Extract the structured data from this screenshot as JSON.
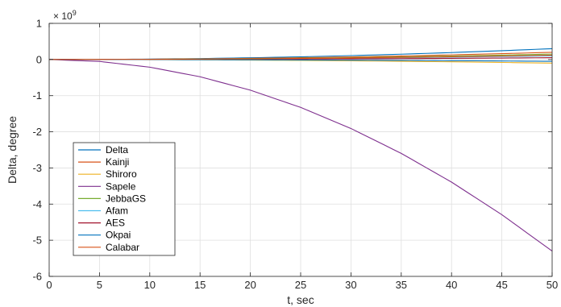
{
  "chart_data": {
    "type": "line",
    "title": "",
    "xlabel": "t, sec",
    "ylabel": "Delta, degree",
    "y_exponent_label": "× 10",
    "y_exponent_power": "9",
    "xlim": [
      0,
      50
    ],
    "ylim": [
      -6,
      1
    ],
    "y_scale_factor": 1000000000,
    "x_ticks": [
      "0",
      "5",
      "10",
      "15",
      "20",
      "25",
      "30",
      "35",
      "40",
      "45",
      "50"
    ],
    "x_tick_values": [
      0,
      5,
      10,
      15,
      20,
      25,
      30,
      35,
      40,
      45,
      50
    ],
    "y_ticks": [
      "-6",
      "-5",
      "-4",
      "-3",
      "-2",
      "-1",
      "0",
      "1"
    ],
    "y_tick_values": [
      -6,
      -5,
      -4,
      -3,
      -2,
      -1,
      0,
      1
    ],
    "grid": true,
    "legend_position": "lower-left",
    "x": [
      0,
      5,
      10,
      15,
      20,
      25,
      30,
      35,
      40,
      45,
      50
    ],
    "series": [
      {
        "name": "Delta",
        "color": "#0072BD",
        "values": [
          0,
          0.003,
          0.012,
          0.027,
          0.048,
          0.075,
          0.108,
          0.147,
          0.192,
          0.243,
          0.3
        ]
      },
      {
        "name": "Kainji",
        "color": "#D95319",
        "values": [
          0,
          0.002,
          0.008,
          0.018,
          0.032,
          0.05,
          0.072,
          0.098,
          0.128,
          0.162,
          0.2
        ]
      },
      {
        "name": "Shiroro",
        "color": "#EDB120",
        "values": [
          0,
          -0.001,
          -0.004,
          -0.009,
          -0.016,
          -0.025,
          -0.036,
          -0.049,
          -0.064,
          -0.081,
          -0.1
        ]
      },
      {
        "name": "Sapele",
        "color": "#7E2F8E",
        "values": [
          0,
          -0.053,
          -0.212,
          -0.477,
          -0.848,
          -1.325,
          -1.908,
          -2.597,
          -3.392,
          -4.293,
          -5.3
        ]
      },
      {
        "name": "JebbaGS",
        "color": "#77AC30",
        "values": [
          0,
          0.0015,
          0.006,
          0.0135,
          0.024,
          0.0375,
          0.054,
          0.0735,
          0.096,
          0.1215,
          0.15
        ]
      },
      {
        "name": "Afam",
        "color": "#4DBEEE",
        "values": [
          0,
          0.001,
          0.004,
          0.009,
          0.016,
          0.025,
          0.036,
          0.049,
          0.064,
          0.081,
          0.1
        ]
      },
      {
        "name": "AES",
        "color": "#A2142F",
        "values": [
          0,
          0.0005,
          0.002,
          0.0045,
          0.008,
          0.0125,
          0.018,
          0.0245,
          0.032,
          0.0405,
          0.05
        ]
      },
      {
        "name": "Okpai",
        "color": "#0072BD",
        "values": [
          0,
          -0.0005,
          -0.002,
          -0.0045,
          -0.008,
          -0.0125,
          -0.018,
          -0.0245,
          -0.032,
          -0.0405,
          -0.05
        ]
      },
      {
        "name": "Calabar",
        "color": "#D95319",
        "values": [
          0,
          0.0012,
          0.0048,
          0.0108,
          0.0192,
          0.03,
          0.0432,
          0.0588,
          0.0768,
          0.0972,
          0.12
        ]
      }
    ]
  }
}
